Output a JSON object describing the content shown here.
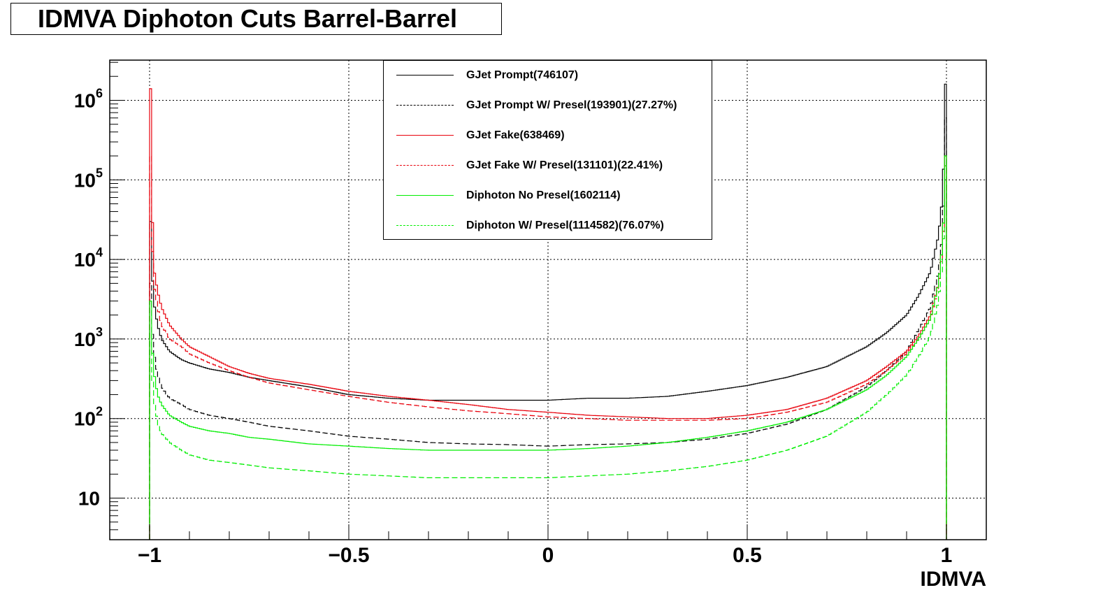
{
  "chart_data": {
    "type": "line",
    "title": "IDMVA Diphoton Cuts Barrel-Barrel",
    "xlabel": "IDMVA",
    "ylabel": "",
    "xlim": [
      -1.1,
      1.1
    ],
    "ylim": [
      3,
      3200000
    ],
    "y_scale": "log",
    "grid": true,
    "legend_position": "top-center",
    "x_ticks": [
      {
        "value": -1,
        "label": "−1"
      },
      {
        "value": -0.5,
        "label": "−0.5"
      },
      {
        "value": 0,
        "label": "0"
      },
      {
        "value": 0.5,
        "label": "0.5"
      },
      {
        "value": 1,
        "label": "1"
      }
    ],
    "y_ticks": [
      {
        "value": 10,
        "base": "10",
        "exp": ""
      },
      {
        "value": 100,
        "base": "10",
        "exp": "2"
      },
      {
        "value": 1000,
        "base": "10",
        "exp": "3"
      },
      {
        "value": 10000,
        "base": "10",
        "exp": "4"
      },
      {
        "value": 100000,
        "base": "10",
        "exp": "5"
      },
      {
        "value": 1000000,
        "base": "10",
        "exp": "6"
      }
    ],
    "x": [
      -1.0,
      -0.99,
      -0.98,
      -0.97,
      -0.95,
      -0.92,
      -0.9,
      -0.85,
      -0.8,
      -0.75,
      -0.7,
      -0.6,
      -0.5,
      -0.4,
      -0.3,
      -0.2,
      -0.1,
      0.0,
      0.1,
      0.2,
      0.3,
      0.4,
      0.5,
      0.6,
      0.7,
      0.8,
      0.85,
      0.9,
      0.93,
      0.96,
      0.98,
      0.99,
      1.0
    ],
    "series": [
      {
        "name": "GJet Prompt(746107)",
        "color": "#000000",
        "dash": "solid",
        "values": [
          30000,
          3000,
          1500,
          1000,
          700,
          550,
          500,
          420,
          380,
          330,
          300,
          250,
          200,
          180,
          170,
          170,
          170,
          170,
          180,
          180,
          190,
          220,
          260,
          330,
          450,
          800,
          1200,
          2000,
          3500,
          7000,
          20000,
          60000,
          1600000
        ]
      },
      {
        "name": "GJet Prompt W/ Presel(193901)(27.27%)",
        "color": "#000000",
        "dash": "dash",
        "values": [
          5000,
          700,
          350,
          250,
          180,
          150,
          130,
          110,
          100,
          90,
          80,
          70,
          60,
          55,
          50,
          48,
          47,
          45,
          47,
          48,
          50,
          55,
          65,
          85,
          130,
          250,
          400,
          700,
          1300,
          2500,
          7000,
          20000,
          600000
        ]
      },
      {
        "name": "GJet Fake(638469)",
        "color": "#e8000b",
        "dash": "solid",
        "values": [
          1400000,
          8000,
          4000,
          2500,
          1500,
          1000,
          800,
          600,
          450,
          370,
          320,
          270,
          220,
          190,
          170,
          150,
          130,
          120,
          110,
          105,
          100,
          100,
          110,
          130,
          180,
          300,
          450,
          700,
          1100,
          2000,
          5000,
          15000,
          200000
        ]
      },
      {
        "name": "GJet Fake W/ Presel(131101)(22.41%)",
        "color": "#e8000b",
        "dash": "dash",
        "values": [
          200000,
          5000,
          2500,
          1500,
          1000,
          800,
          650,
          500,
          400,
          330,
          280,
          230,
          190,
          160,
          140,
          125,
          115,
          105,
          100,
          95,
          95,
          95,
          100,
          120,
          160,
          270,
          400,
          650,
          1000,
          1800,
          4500,
          12000,
          150000
        ]
      },
      {
        "name": "Diphoton No Presel(1602114)",
        "color": "#00ee00",
        "dash": "solid",
        "values": [
          3000,
          400,
          200,
          150,
          110,
          90,
          80,
          70,
          65,
          58,
          55,
          48,
          45,
          42,
          40,
          40,
          40,
          40,
          42,
          45,
          50,
          58,
          70,
          90,
          130,
          230,
          350,
          600,
          1000,
          1800,
          5000,
          15000,
          200000
        ]
      },
      {
        "name": "Diphoton W/ Presel(1114582)(76.07%)",
        "color": "#00ee00",
        "dash": "dash",
        "values": [
          1200,
          180,
          90,
          65,
          50,
          40,
          35,
          30,
          28,
          26,
          24,
          22,
          20,
          19,
          18,
          18,
          18,
          18,
          19,
          20,
          22,
          25,
          30,
          40,
          60,
          120,
          200,
          350,
          600,
          1100,
          3000,
          9000,
          150000
        ]
      }
    ]
  }
}
